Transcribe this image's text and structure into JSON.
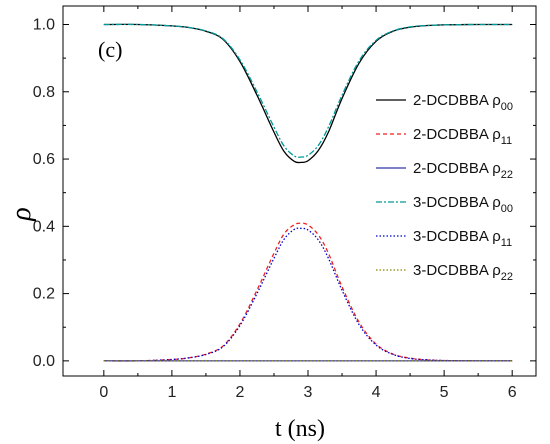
{
  "chart_data": {
    "type": "line",
    "panel_label": "(c)",
    "xlabel": "t (ns)",
    "ylabel": "ρ",
    "xlim": [
      -0.6,
      6.35
    ],
    "ylim": [
      -0.045,
      1.055
    ],
    "xticks": [
      0,
      1,
      2,
      3,
      4,
      5,
      6
    ],
    "xtick_labels": [
      "0",
      "1",
      "2",
      "3",
      "4",
      "5",
      "6"
    ],
    "yticks": [
      0.0,
      0.2,
      0.4,
      0.6,
      0.8,
      1.0
    ],
    "ytick_labels": [
      "0.0",
      "0.2",
      "0.4",
      "0.6",
      "0.8",
      "1.0"
    ],
    "grid": false,
    "legend_position": "right",
    "x": [
      0,
      0.5,
      1,
      1.25,
      1.5,
      1.75,
      2,
      2.25,
      2.5,
      2.65,
      2.8,
      2.9,
      3,
      3.15,
      3.3,
      3.5,
      3.75,
      4,
      4.25,
      4.5,
      4.75,
      5,
      5.5,
      6
    ],
    "series": [
      {
        "name": "2-DCDBBA ρ00",
        "label_main": "2-DCDBBA ρ",
        "label_sub": "00",
        "color": "#000000",
        "dash": "",
        "values": [
          1.0,
          1.0,
          0.996,
          0.991,
          0.98,
          0.956,
          0.89,
          0.79,
          0.68,
          0.622,
          0.593,
          0.59,
          0.595,
          0.625,
          0.68,
          0.78,
          0.885,
          0.95,
          0.98,
          0.992,
          0.997,
          0.999,
          1.0,
          1.0
        ]
      },
      {
        "name": "2-DCDBBA ρ11",
        "label_main": "2-DCDBBA ρ",
        "label_sub": "11",
        "color": "#ee2222",
        "dash": "4,3",
        "values": [
          0.0,
          0.0,
          0.004,
          0.009,
          0.02,
          0.044,
          0.11,
          0.21,
          0.32,
          0.378,
          0.405,
          0.409,
          0.404,
          0.375,
          0.32,
          0.22,
          0.115,
          0.05,
          0.02,
          0.008,
          0.003,
          0.001,
          0.0,
          0.0
        ]
      },
      {
        "name": "2-DCDBBA ρ22",
        "label_main": "2-DCDBBA ρ",
        "label_sub": "22",
        "color": "#3333aa",
        "dash": "",
        "values": [
          0.0,
          0.0,
          0.0,
          0.0,
          0.0,
          0.0,
          0.0,
          0.0,
          0.0,
          0.0,
          0.0,
          0.0,
          0.0,
          0.0,
          0.0,
          0.0,
          0.0,
          0.0,
          0.0,
          0.0,
          0.0,
          0.0,
          0.0,
          0.0
        ]
      },
      {
        "name": "3-DCDBBA ρ00",
        "label_main": "3-DCDBBA ρ",
        "label_sub": "00",
        "color": "#009999",
        "dash": "6,2,2,2",
        "values": [
          1.0,
          1.0,
          0.996,
          0.991,
          0.981,
          0.958,
          0.895,
          0.8,
          0.695,
          0.638,
          0.609,
          0.606,
          0.611,
          0.64,
          0.695,
          0.79,
          0.892,
          0.953,
          0.981,
          0.993,
          0.997,
          0.999,
          1.0,
          1.0
        ]
      },
      {
        "name": "3-DCDBBA ρ11",
        "label_main": "3-DCDBBA ρ",
        "label_sub": "11",
        "color": "#0000cc",
        "dash": "1.5,2",
        "values": [
          0.0,
          0.0,
          0.004,
          0.009,
          0.019,
          0.042,
          0.105,
          0.2,
          0.305,
          0.362,
          0.391,
          0.394,
          0.389,
          0.36,
          0.305,
          0.21,
          0.108,
          0.047,
          0.019,
          0.007,
          0.003,
          0.001,
          0.0,
          0.0
        ]
      },
      {
        "name": "3-DCDBBA ρ22",
        "label_main": "3-DCDBBA ρ",
        "label_sub": "22",
        "color": "#888800",
        "dash": "1.5,2",
        "values": [
          0.0,
          0.0,
          0.0,
          0.0,
          0.0,
          0.0,
          0.0,
          0.0,
          0.0,
          0.0,
          0.0,
          0.0,
          0.0,
          0.0,
          0.0,
          0.0,
          0.0,
          0.0,
          0.0,
          0.0,
          0.0,
          0.0,
          0.0,
          0.0
        ]
      }
    ]
  }
}
